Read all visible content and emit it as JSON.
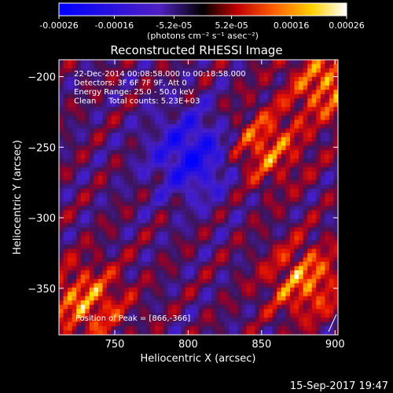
{
  "colorbar": {
    "tick_labels": [
      "-0.00026",
      "-0.00016",
      "-5.2e-05",
      "5.2e-05",
      "0.00016",
      "0.00026"
    ],
    "tick_values": [
      -0.00026,
      -0.00016,
      -5.2e-05,
      5.2e-05,
      0.00016,
      0.00026
    ],
    "range": [
      -0.00026,
      0.00026
    ],
    "unit_label": "(photons cm⁻² s⁻¹ asec⁻²)",
    "colormap_stops": [
      "#0000ff",
      "#5020c0",
      "#ff0000",
      "#ff8000",
      "#ffff00",
      "#ffffff"
    ]
  },
  "chart_data": {
    "type": "heatmap",
    "title": "Reconstructed RHESSI Image",
    "xlabel": "Heliocentric X (arcsec)",
    "ylabel": "Heliocentric Y (arcsec)",
    "xlim": [
      712,
      902
    ],
    "ylim": [
      -383,
      -188
    ],
    "x_ticks": [
      750,
      800,
      850,
      900
    ],
    "y_ticks": [
      -200,
      -250,
      -300,
      -350
    ],
    "x_tick_labels": [
      "750",
      "800",
      "850",
      "900"
    ],
    "y_tick_labels": [
      "−200",
      "−250",
      "−300",
      "−350"
    ],
    "annotations": [
      "22-Dec-2014 00:08:58.000 to 00:18:58.000",
      "Detectors: 3F 6F 7F 9F, Att 0",
      "Energy Range: 25.0 - 50.0 keV",
      "Clean     Total counts: 5.23E+03"
    ],
    "peak_label": "Position of Peak = [866,-366]",
    "peak_position": [
      866,
      -366
    ],
    "bright_regions": [
      {
        "x": 850,
        "y": -250
      },
      {
        "x": 730,
        "y": -360
      },
      {
        "x": 880,
        "y": -345
      },
      {
        "x": 895,
        "y": -205
      }
    ],
    "dim_region": {
      "x": 805,
      "y": -255
    }
  },
  "footer": {
    "timestamp": "15-Sep-2017 19:47"
  }
}
